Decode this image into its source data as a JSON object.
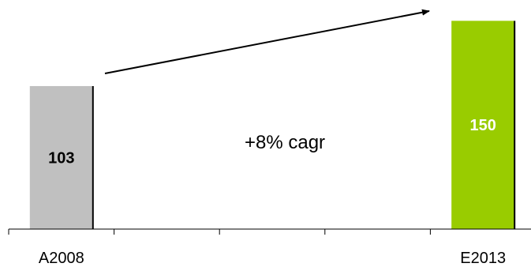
{
  "chart_data": {
    "type": "bar",
    "categories": [
      "A2008",
      "",
      "",
      "",
      "E2013"
    ],
    "values": [
      103,
      null,
      null,
      null,
      150
    ],
    "data_labels": [
      "103",
      "",
      "",
      "",
      "150"
    ],
    "ylim": [
      0,
      165
    ],
    "grid": false,
    "annotation": "+8% cagr",
    "colors": {
      "bar_2008": "#c0c0c0",
      "bar_2013": "#99cc00",
      "label_2008": "#000000",
      "label_2013": "#ffffff",
      "bar_edge": "#000000",
      "axis": "#000000",
      "arrow": "#000000"
    }
  }
}
